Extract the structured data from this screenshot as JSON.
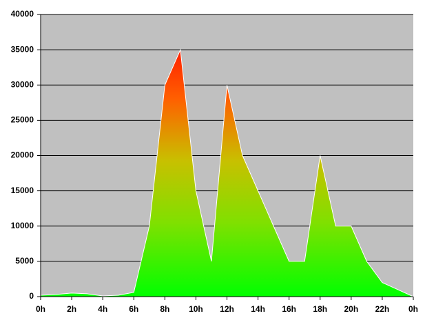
{
  "chart_data": {
    "type": "area",
    "x": [
      0,
      1,
      2,
      3,
      4,
      5,
      6,
      7,
      8,
      9,
      10,
      11,
      12,
      13,
      14,
      15,
      16,
      17,
      18,
      19,
      20,
      21,
      22,
      23,
      24
    ],
    "values": [
      200,
      300,
      500,
      400,
      100,
      200,
      600,
      10000,
      30000,
      35000,
      15000,
      5000,
      30000,
      20000,
      15000,
      10000,
      5000,
      5000,
      20000,
      10000,
      10000,
      5000,
      2000,
      1000,
      0
    ],
    "xlim": [
      0,
      24
    ],
    "xticks": [
      {
        "value": 0,
        "label": "0h"
      },
      {
        "value": 2,
        "label": "2h"
      },
      {
        "value": 4,
        "label": "4h"
      },
      {
        "value": 6,
        "label": "6h"
      },
      {
        "value": 8,
        "label": "8h"
      },
      {
        "value": 10,
        "label": "10h"
      },
      {
        "value": 12,
        "label": "12h"
      },
      {
        "value": 14,
        "label": "14h"
      },
      {
        "value": 16,
        "label": "16h"
      },
      {
        "value": 18,
        "label": "18h"
      },
      {
        "value": 20,
        "label": "20h"
      },
      {
        "value": 22,
        "label": "22h"
      },
      {
        "value": 24,
        "label": "0h"
      }
    ],
    "ylim": [
      0,
      40000
    ],
    "yticks": [
      0,
      5000,
      10000,
      15000,
      20000,
      25000,
      30000,
      35000,
      40000
    ],
    "grid": true
  }
}
